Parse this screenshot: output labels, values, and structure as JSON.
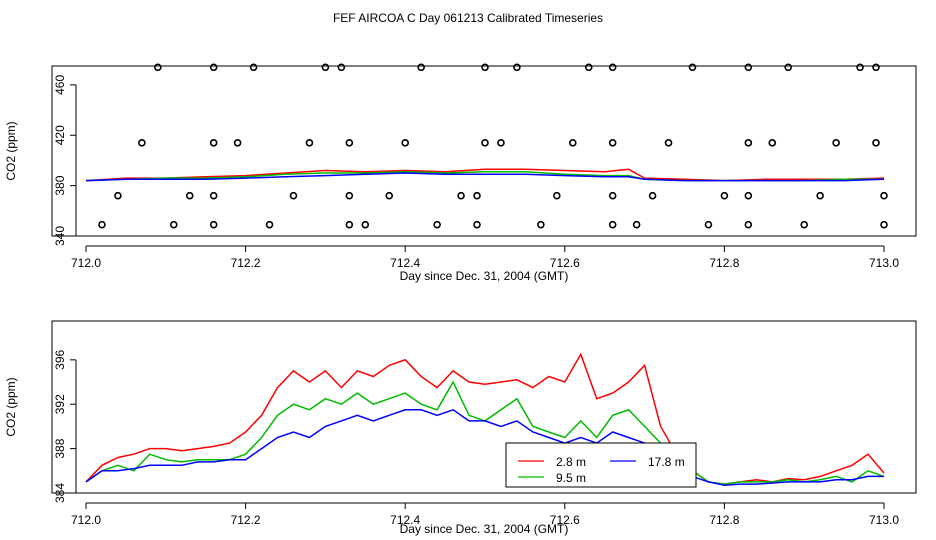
{
  "title": "FEF AIRCOA C  Day 061213  Calibrated Timeseries",
  "chart_data": [
    {
      "type": "scatter",
      "xlabel": "Day since Dec. 31, 2004 (GMT)",
      "ylabel": "CO2 (ppm)",
      "xlim": [
        712.0,
        713.0
      ],
      "ylim": [
        340,
        475
      ],
      "xticks": [
        "712.0",
        "712.2",
        "712.4",
        "712.6",
        "712.8",
        "713.0"
      ],
      "yticks": [
        "340",
        "380",
        "420",
        "460"
      ],
      "points": [
        {
          "x": 712.09,
          "y": 474
        },
        {
          "x": 712.16,
          "y": 474
        },
        {
          "x": 712.21,
          "y": 474
        },
        {
          "x": 712.3,
          "y": 474
        },
        {
          "x": 712.32,
          "y": 474
        },
        {
          "x": 712.42,
          "y": 474
        },
        {
          "x": 712.5,
          "y": 474
        },
        {
          "x": 712.54,
          "y": 474
        },
        {
          "x": 712.63,
          "y": 474
        },
        {
          "x": 712.66,
          "y": 474
        },
        {
          "x": 712.76,
          "y": 474
        },
        {
          "x": 712.83,
          "y": 474
        },
        {
          "x": 712.88,
          "y": 474
        },
        {
          "x": 712.97,
          "y": 474
        },
        {
          "x": 712.99,
          "y": 474
        },
        {
          "x": 712.07,
          "y": 414
        },
        {
          "x": 712.16,
          "y": 414
        },
        {
          "x": 712.19,
          "y": 414
        },
        {
          "x": 712.28,
          "y": 414
        },
        {
          "x": 712.33,
          "y": 414
        },
        {
          "x": 712.4,
          "y": 414
        },
        {
          "x": 712.5,
          "y": 414
        },
        {
          "x": 712.52,
          "y": 414
        },
        {
          "x": 712.61,
          "y": 414
        },
        {
          "x": 712.66,
          "y": 414
        },
        {
          "x": 712.73,
          "y": 414
        },
        {
          "x": 712.83,
          "y": 414
        },
        {
          "x": 712.86,
          "y": 414
        },
        {
          "x": 712.94,
          "y": 414
        },
        {
          "x": 712.99,
          "y": 414
        },
        {
          "x": 712.04,
          "y": 372
        },
        {
          "x": 712.13,
          "y": 372
        },
        {
          "x": 712.16,
          "y": 372
        },
        {
          "x": 712.26,
          "y": 372
        },
        {
          "x": 712.33,
          "y": 372
        },
        {
          "x": 712.38,
          "y": 372
        },
        {
          "x": 712.47,
          "y": 372
        },
        {
          "x": 712.49,
          "y": 372
        },
        {
          "x": 712.59,
          "y": 372
        },
        {
          "x": 712.66,
          "y": 372
        },
        {
          "x": 712.71,
          "y": 372
        },
        {
          "x": 712.8,
          "y": 372
        },
        {
          "x": 712.83,
          "y": 372
        },
        {
          "x": 712.92,
          "y": 372
        },
        {
          "x": 713.0,
          "y": 372
        },
        {
          "x": 712.02,
          "y": 349
        },
        {
          "x": 712.11,
          "y": 349
        },
        {
          "x": 712.16,
          "y": 349
        },
        {
          "x": 712.23,
          "y": 349
        },
        {
          "x": 712.33,
          "y": 349
        },
        {
          "x": 712.35,
          "y": 349
        },
        {
          "x": 712.44,
          "y": 349
        },
        {
          "x": 712.49,
          "y": 349
        },
        {
          "x": 712.57,
          "y": 349
        },
        {
          "x": 712.66,
          "y": 349
        },
        {
          "x": 712.69,
          "y": 349
        },
        {
          "x": 712.78,
          "y": 349
        },
        {
          "x": 712.83,
          "y": 349
        },
        {
          "x": 712.9,
          "y": 349
        },
        {
          "x": 713.0,
          "y": 349
        }
      ],
      "series": [
        {
          "color": "#ff0000",
          "x": [
            712.0,
            712.05,
            712.1,
            712.15,
            712.2,
            712.25,
            712.3,
            712.35,
            712.4,
            712.45,
            712.5,
            712.55,
            712.6,
            712.65,
            712.68,
            712.7,
            712.75,
            712.8,
            712.85,
            712.9,
            712.95,
            713.0
          ],
          "values": [
            384,
            386,
            386,
            387,
            388,
            390,
            392,
            391,
            392,
            391,
            393,
            393,
            392,
            391,
            393,
            386,
            385,
            384,
            385,
            385,
            385,
            386
          ]
        },
        {
          "color": "#00bb00",
          "x": [
            712.0,
            712.05,
            712.1,
            712.15,
            712.2,
            712.25,
            712.3,
            712.35,
            712.4,
            712.45,
            712.5,
            712.55,
            712.6,
            712.65,
            712.68,
            712.7,
            712.75,
            712.8,
            712.85,
            712.9,
            712.95,
            713.0
          ],
          "values": [
            384,
            385,
            386,
            386,
            387,
            389,
            390,
            390,
            391,
            390,
            391,
            391,
            389,
            388,
            388,
            385,
            384,
            384,
            384,
            384,
            385,
            385
          ]
        },
        {
          "color": "#0000ff",
          "x": [
            712.0,
            712.05,
            712.1,
            712.15,
            712.2,
            712.25,
            712.3,
            712.35,
            712.4,
            712.45,
            712.5,
            712.55,
            712.6,
            712.65,
            712.68,
            712.7,
            712.75,
            712.8,
            712.85,
            712.9,
            712.95,
            713.0
          ],
          "values": [
            384,
            385,
            385,
            385,
            386,
            387,
            388,
            389,
            390,
            389,
            389,
            389,
            388,
            387,
            387,
            385,
            384,
            384,
            384,
            384,
            384,
            385
          ]
        }
      ]
    },
    {
      "type": "line",
      "xlabel": "Day since Dec. 31, 2004 (GMT)",
      "ylabel": "CO2 (ppm)",
      "xlim": [
        712.0,
        713.0
      ],
      "ylim": [
        384,
        399.5
      ],
      "xticks": [
        "712.0",
        "712.2",
        "712.4",
        "712.6",
        "712.8",
        "713.0"
      ],
      "yticks": [
        "384",
        "388",
        "392",
        "396"
      ],
      "x": [
        712.0,
        712.02,
        712.04,
        712.06,
        712.08,
        712.1,
        712.12,
        712.14,
        712.16,
        712.18,
        712.2,
        712.22,
        712.24,
        712.26,
        712.28,
        712.3,
        712.32,
        712.34,
        712.36,
        712.38,
        712.4,
        712.42,
        712.44,
        712.46,
        712.48,
        712.5,
        712.52,
        712.54,
        712.56,
        712.58,
        712.6,
        712.62,
        712.64,
        712.66,
        712.68,
        712.7,
        712.72,
        712.74,
        712.76,
        712.78,
        712.8,
        712.82,
        712.84,
        712.86,
        712.88,
        712.9,
        712.92,
        712.94,
        712.96,
        712.98,
        713.0
      ],
      "series": [
        {
          "name": "2.8 m",
          "color": "#ff0000",
          "values": [
            385.0,
            386.5,
            387.2,
            387.5,
            388.0,
            388.0,
            387.8,
            388.0,
            388.2,
            388.5,
            389.5,
            391.0,
            393.5,
            395.0,
            394.0,
            395.0,
            393.5,
            395.0,
            394.5,
            395.5,
            396.0,
            394.5,
            393.5,
            395.0,
            394.0,
            393.8,
            394.0,
            394.2,
            393.5,
            394.5,
            394.0,
            396.5,
            392.5,
            393.0,
            394.0,
            395.5,
            390.0,
            387.5,
            386.0,
            385.0,
            384.8,
            385.0,
            385.2,
            385.0,
            385.3,
            385.2,
            385.5,
            386.0,
            386.5,
            387.5,
            385.8
          ]
        },
        {
          "name": "9.5 m",
          "color": "#00bb00",
          "values": [
            385.0,
            386.0,
            386.5,
            386.0,
            387.5,
            387.0,
            386.8,
            387.0,
            387.0,
            387.0,
            387.5,
            389.0,
            391.0,
            392.0,
            391.5,
            392.5,
            392.0,
            393.0,
            392.0,
            392.5,
            393.0,
            392.0,
            391.5,
            394.0,
            391.0,
            390.5,
            391.5,
            392.5,
            390.0,
            389.5,
            389.0,
            390.5,
            389.0,
            391.0,
            391.5,
            390.0,
            388.5,
            387.0,
            386.0,
            385.0,
            384.8,
            385.0,
            385.0,
            385.0,
            385.2,
            385.0,
            385.2,
            385.5,
            385.0,
            386.0,
            385.5
          ]
        },
        {
          "name": "17.8 m",
          "color": "#0000ff",
          "values": [
            385.0,
            386.0,
            386.0,
            386.2,
            386.5,
            386.5,
            386.5,
            386.8,
            386.8,
            387.0,
            387.0,
            388.0,
            389.0,
            389.5,
            389.0,
            390.0,
            390.5,
            391.0,
            390.5,
            391.0,
            391.5,
            391.5,
            391.0,
            391.5,
            390.5,
            390.5,
            390.0,
            390.5,
            389.5,
            389.0,
            388.5,
            389.0,
            388.5,
            389.5,
            389.0,
            388.5,
            387.5,
            386.0,
            385.5,
            385.0,
            384.7,
            384.8,
            384.8,
            384.9,
            385.0,
            385.0,
            385.0,
            385.2,
            385.2,
            385.5,
            385.5
          ]
        }
      ],
      "legend": {
        "placement": "bottom-center"
      }
    }
  ]
}
